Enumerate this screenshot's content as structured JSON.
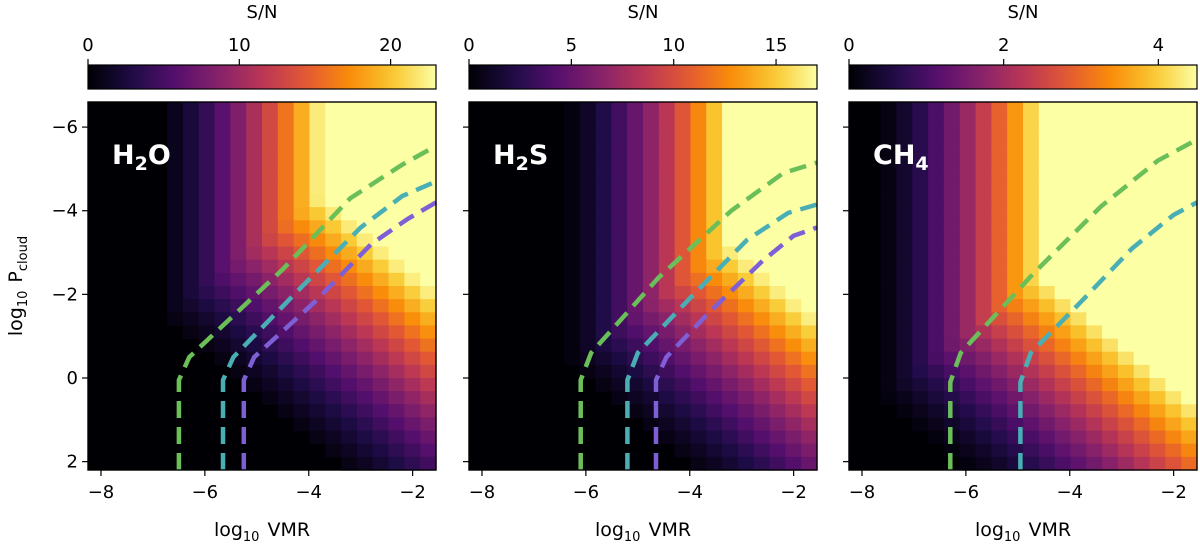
{
  "chart_data": [
    {
      "type": "heatmap",
      "molecule": "H2O",
      "label_main": "H",
      "label_sub": "2",
      "label_tail": "O",
      "colorbar": {
        "title": "S/N",
        "range": [
          0,
          23
        ],
        "ticks": [
          0,
          10,
          20
        ],
        "tick_labels": [
          "0",
          "10",
          "20"
        ]
      },
      "xlabel_main": "log",
      "xlabel_sub": "10",
      "xlabel_tail": "VMR",
      "ylabel_main": "log",
      "ylabel_sub": "10",
      "ylabel_tail": "P",
      "ylabel_tail_sub": "cloud",
      "xlim": [
        -8.25,
        -1.55
      ],
      "ylim": [
        2.2,
        -6.6
      ],
      "xticks": [
        -8,
        -6,
        -4,
        -2
      ],
      "xtick_labels": [
        "−8",
        "−6",
        "−4",
        "−2"
      ],
      "yticks": [
        -6,
        -4,
        -2,
        0,
        2
      ],
      "ytick_labels": [
        "−6",
        "−4",
        "−2",
        "0",
        "2"
      ],
      "grid": {
        "x_range": [
          -8.25,
          -1.55
        ],
        "y_range": [
          -6.6,
          2.2
        ],
        "nx": 22,
        "ny": 28,
        "onset": 5.8,
        "threshold_vmr": -7.0,
        "saturation": 23
      },
      "contours": [
        {
          "color": "#6bbf59",
          "points": [
            [
              -6.5,
              2.2
            ],
            [
              -6.5,
              0.05
            ],
            [
              -6.3,
              -0.5
            ],
            [
              -4.5,
              -2.6
            ],
            [
              -3.2,
              -4.3
            ],
            [
              -2.2,
              -5.1
            ],
            [
              -1.55,
              -5.55
            ]
          ]
        },
        {
          "color": "#4aafb5",
          "points": [
            [
              -5.65,
              2.2
            ],
            [
              -5.65,
              0.05
            ],
            [
              -5.45,
              -0.5
            ],
            [
              -4.2,
              -2.1
            ],
            [
              -3.0,
              -3.6
            ],
            [
              -2.2,
              -4.35
            ],
            [
              -1.55,
              -4.7
            ]
          ]
        },
        {
          "color": "#7e5fd6",
          "points": [
            [
              -5.25,
              2.2
            ],
            [
              -5.25,
              0.05
            ],
            [
              -5.05,
              -0.5
            ],
            [
              -3.9,
              -1.8
            ],
            [
              -2.8,
              -3.2
            ],
            [
              -2.1,
              -3.8
            ],
            [
              -1.55,
              -4.2
            ]
          ]
        }
      ]
    },
    {
      "type": "heatmap",
      "molecule": "H2S",
      "label_main": "H",
      "label_sub": "2",
      "label_tail": "S",
      "colorbar": {
        "title": "S/N",
        "range": [
          0,
          17
        ],
        "ticks": [
          0,
          5,
          10,
          15
        ],
        "tick_labels": [
          "0",
          "5",
          "10",
          "15"
        ]
      },
      "xlabel_main": "log",
      "xlabel_sub": "10",
      "xlabel_tail": "VMR",
      "xlim": [
        -8.25,
        -1.55
      ],
      "ylim": [
        2.2,
        -6.6
      ],
      "xticks": [
        -8,
        -6,
        -4,
        -2
      ],
      "xtick_labels": [
        "−8",
        "−6",
        "−4",
        "−2"
      ],
      "yticks": [
        -6,
        -4,
        -2,
        0,
        2
      ],
      "grid": {
        "x_range": [
          -8.25,
          -1.55
        ],
        "y_range": [
          -6.6,
          2.2
        ],
        "nx": 22,
        "ny": 28,
        "onset": 6.4,
        "threshold_vmr": -6.5,
        "saturation": 17
      },
      "contours": [
        {
          "color": "#6bbf59",
          "points": [
            [
              -6.1,
              2.2
            ],
            [
              -6.1,
              0.05
            ],
            [
              -5.9,
              -0.6
            ],
            [
              -4.6,
              -2.4
            ],
            [
              -3.2,
              -4.0
            ],
            [
              -2.2,
              -4.9
            ],
            [
              -1.55,
              -5.15
            ]
          ]
        },
        {
          "color": "#4aafb5",
          "points": [
            [
              -5.2,
              2.2
            ],
            [
              -5.2,
              0.05
            ],
            [
              -5.0,
              -0.6
            ],
            [
              -4.0,
              -1.9
            ],
            [
              -2.9,
              -3.3
            ],
            [
              -2.1,
              -3.95
            ],
            [
              -1.55,
              -4.15
            ]
          ]
        },
        {
          "color": "#7e5fd6",
          "points": [
            [
              -4.65,
              2.2
            ],
            [
              -4.65,
              0.05
            ],
            [
              -4.45,
              -0.5
            ],
            [
              -3.6,
              -1.6
            ],
            [
              -2.6,
              -2.8
            ],
            [
              -2.0,
              -3.4
            ],
            [
              -1.55,
              -3.6
            ]
          ]
        }
      ]
    },
    {
      "type": "heatmap",
      "molecule": "CH4",
      "label_main": "CH",
      "label_sub": "4",
      "label_tail": "",
      "colorbar": {
        "title": "S/N",
        "range": [
          0,
          4.5
        ],
        "ticks": [
          0,
          2,
          4
        ],
        "tick_labels": [
          "0",
          "2",
          "4"
        ]
      },
      "xlabel_main": "log",
      "xlabel_sub": "10",
      "xlabel_tail": "VMR",
      "xlim": [
        -8.25,
        -1.55
      ],
      "ylim": [
        2.2,
        -6.6
      ],
      "xticks": [
        -8,
        -6,
        -4,
        -2
      ],
      "xtick_labels": [
        "−8",
        "−6",
        "−4",
        "−2"
      ],
      "yticks": [
        -6,
        -4,
        -2,
        0,
        2
      ],
      "grid": {
        "x_range": [
          -8.25,
          -1.55
        ],
        "y_range": [
          -6.6,
          2.2
        ],
        "nx": 22,
        "ny": 28,
        "onset": 8.4,
        "threshold_vmr": -7.8,
        "saturation": 4.5
      },
      "contours": [
        {
          "color": "#6bbf59",
          "points": [
            [
              -6.3,
              2.2
            ],
            [
              -6.3,
              0.1
            ],
            [
              -6.1,
              -0.6
            ],
            [
              -4.7,
              -2.5
            ],
            [
              -3.4,
              -4.1
            ],
            [
              -2.3,
              -5.2
            ],
            [
              -1.55,
              -5.7
            ]
          ]
        },
        {
          "color": "#4aafb5",
          "points": [
            [
              -4.95,
              2.2
            ],
            [
              -4.95,
              0.1
            ],
            [
              -4.75,
              -0.6
            ],
            [
              -3.8,
              -1.8
            ],
            [
              -2.8,
              -3.1
            ],
            [
              -2.0,
              -3.9
            ],
            [
              -1.55,
              -4.2
            ]
          ]
        }
      ]
    }
  ]
}
